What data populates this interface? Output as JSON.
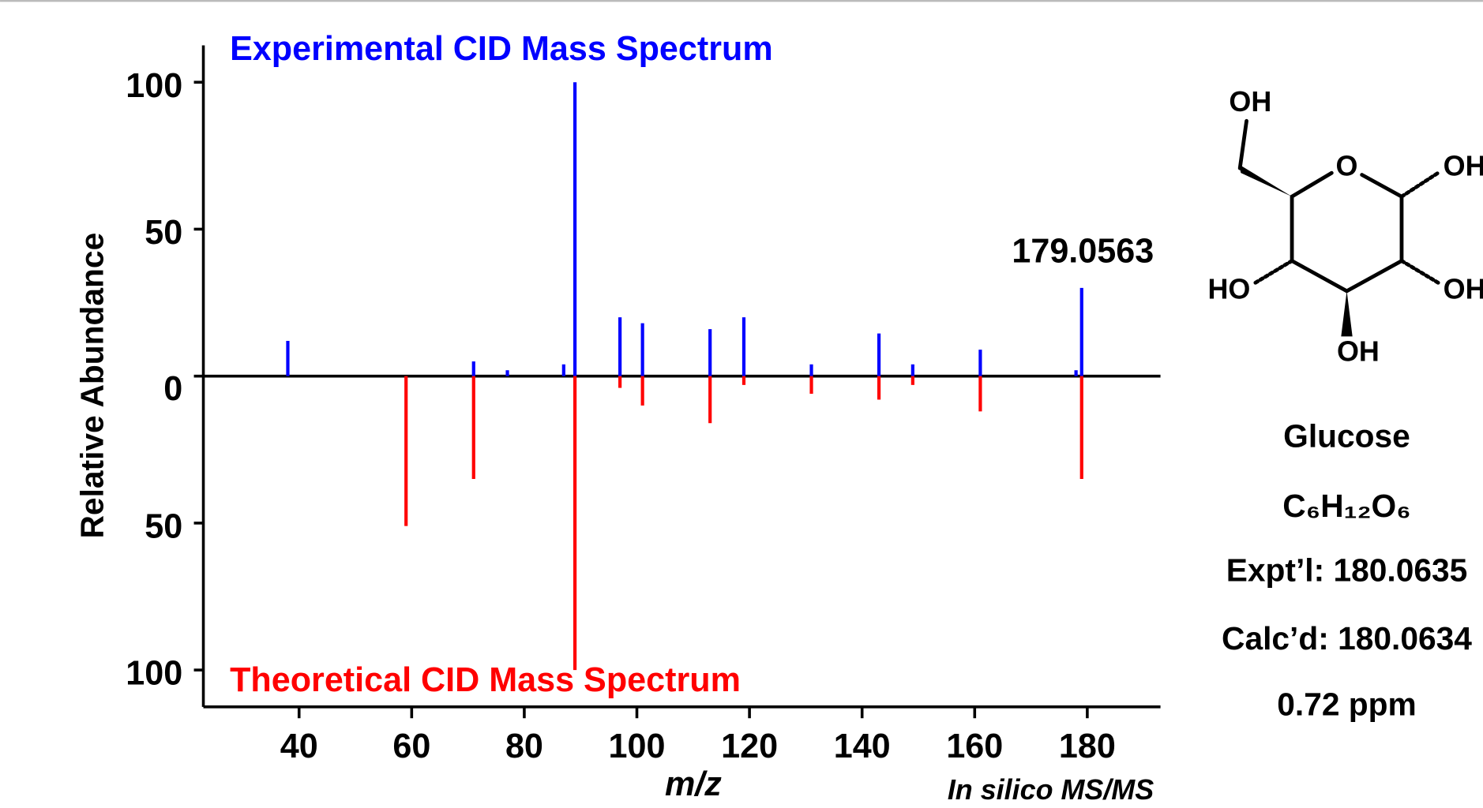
{
  "chart_data": {
    "type": "mirror-stem",
    "y_label": "Relative Abundance",
    "x_label": "m/z",
    "footer": "In silico MS/MS",
    "annotation": "179.0563",
    "xlim": [
      23,
      193
    ],
    "xticks": [
      40,
      60,
      80,
      100,
      120,
      140,
      160,
      180
    ],
    "ylim": [
      -100,
      100
    ],
    "yticks": [
      {
        "value": -100,
        "label": "100"
      },
      {
        "value": -50,
        "label": "50"
      },
      0,
      50,
      100
    ],
    "series": [
      {
        "name": "Experimental CID Mass Spectrum",
        "color": "#0000ff",
        "x": [
          38,
          71,
          77,
          87,
          89,
          97,
          101,
          113,
          119,
          131,
          143,
          149,
          161,
          178,
          179
        ],
        "values": [
          12,
          5,
          2,
          4,
          100,
          20,
          18,
          16,
          20,
          4,
          14.5,
          4,
          9,
          2,
          30
        ]
      },
      {
        "name": "Theoretical CID Mass Spectrum",
        "color": "#ff0000",
        "x": [
          59,
          71,
          89,
          97,
          101,
          113,
          119,
          131,
          143,
          149,
          161,
          179
        ],
        "values": [
          -51,
          -35,
          -100,
          -4,
          -10,
          -16,
          -3,
          -6,
          -8,
          -3,
          -12,
          -35
        ]
      }
    ]
  },
  "compound": {
    "atoms": [
      "OH",
      "O",
      "OH",
      "HO",
      "OH",
      "OH"
    ],
    "name": "Glucose",
    "formula": "C₆H₁₂O₆",
    "experimental": "Expt’l: 180.0635",
    "calculated": "Calc’d: 180.0634",
    "error": "0.72 ppm"
  }
}
